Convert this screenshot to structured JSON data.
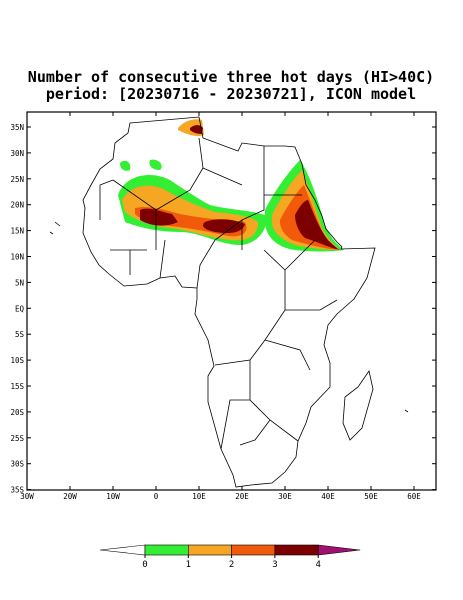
{
  "header": {
    "title": "Number of consecutive three hot days (HI>40C)",
    "subtitle": "period: [20230716 - 20230721], ICON model"
  },
  "map": {
    "lat_labels": [
      "35N",
      "30N",
      "25N",
      "20N",
      "15N",
      "10N",
      "5N",
      "EQ",
      "5S",
      "10S",
      "15S",
      "20S",
      "25S",
      "30S",
      "35S"
    ],
    "lon_labels": [
      "30W",
      "20W",
      "10W",
      "0",
      "10E",
      "20E",
      "30E",
      "40E",
      "50E",
      "60E"
    ]
  },
  "legend": {
    "levels": [
      0,
      1,
      2,
      3,
      4
    ],
    "labels": [
      "0",
      "1",
      "2",
      "3",
      "4"
    ],
    "colors": [
      "#ffffff",
      "#33ee33",
      "#f5a623",
      "#f05a0a",
      "#7d0000",
      "#a0106e"
    ]
  }
}
